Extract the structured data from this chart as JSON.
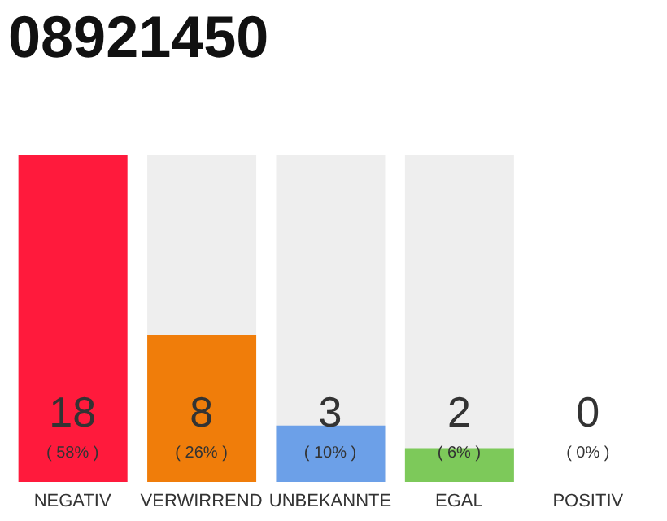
{
  "chart_data": {
    "type": "bar",
    "title": "08921450",
    "categories": [
      "NEGATIV",
      "VERWIRREND",
      "UNBEKANNTE",
      "EGAL",
      "POSITIV"
    ],
    "values": [
      58,
      26,
      10,
      6,
      0
    ],
    "colors": [
      "#ff1a3c",
      "#f07d0a",
      "#6ca0e8",
      "#7dc95a",
      "#cccccc"
    ],
    "value_labels": [
      "( 58% )",
      "( 26% )",
      "( 10% )",
      "( 6% )",
      "( 0% )"
    ],
    "annotations": [
      "18",
      "8",
      "3",
      "2",
      "0"
    ],
    "grid": false,
    "legend": false
  }
}
